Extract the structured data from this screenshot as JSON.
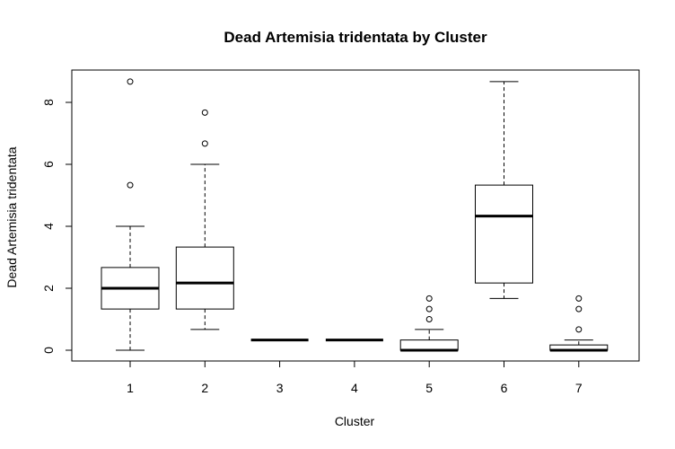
{
  "chart_data": {
    "type": "box",
    "title": "Dead Artemisia tridentata  by Cluster",
    "xlabel": "Cluster",
    "ylabel": "Dead Artemisia tridentata",
    "categories": [
      "1",
      "2",
      "3",
      "4",
      "5",
      "6",
      "7"
    ],
    "y_ticks": [
      0,
      2,
      4,
      6,
      8
    ],
    "ylim": [
      -0.35,
      9.0
    ],
    "grid": false,
    "boxes": [
      {
        "category": "1",
        "whisker_low": 0.0,
        "q1": 1.33,
        "median": 2.0,
        "q3": 2.67,
        "whisker_high": 4.0,
        "outliers": [
          5.33,
          8.67
        ]
      },
      {
        "category": "2",
        "whisker_low": 0.67,
        "q1": 1.33,
        "median": 2.17,
        "q3": 3.33,
        "whisker_high": 6.0,
        "outliers": [
          6.67,
          7.67
        ]
      },
      {
        "category": "3",
        "whisker_low": 0.33,
        "q1": 0.33,
        "median": 0.33,
        "q3": 0.33,
        "whisker_high": 0.33,
        "outliers": []
      },
      {
        "category": "4",
        "whisker_low": 0.33,
        "q1": 0.33,
        "median": 0.33,
        "q3": 0.33,
        "whisker_high": 0.33,
        "outliers": []
      },
      {
        "category": "5",
        "whisker_low": 0.0,
        "q1": 0.0,
        "median": 0.0,
        "q3": 0.33,
        "whisker_high": 0.67,
        "outliers": [
          1.0,
          1.33,
          1.67
        ]
      },
      {
        "category": "6",
        "whisker_low": 1.67,
        "q1": 2.17,
        "median": 4.33,
        "q3": 5.33,
        "whisker_high": 8.67,
        "outliers": []
      },
      {
        "category": "7",
        "whisker_low": 0.0,
        "q1": 0.0,
        "median": 0.0,
        "q3": 0.17,
        "whisker_high": 0.33,
        "outliers": [
          0.67,
          1.33,
          1.67
        ]
      }
    ]
  }
}
